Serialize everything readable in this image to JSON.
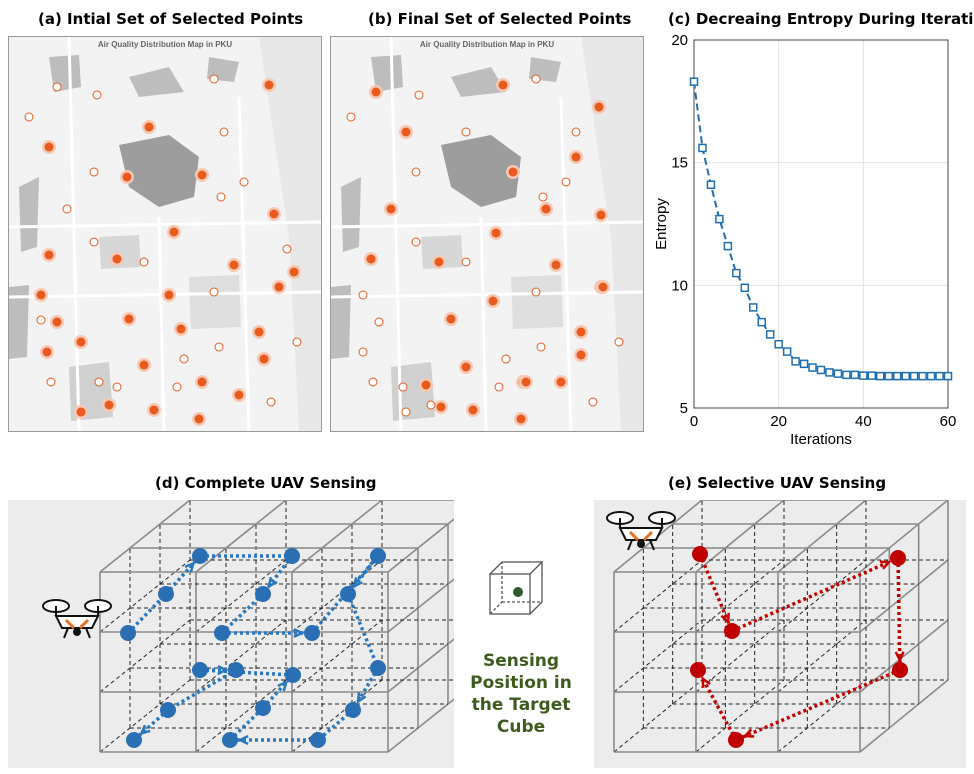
{
  "panels": {
    "a_title": "(a) Intial Set of Selected Points",
    "b_title": "(b) Final Set of Selected Points",
    "c_title": "(c) Decreaing Entropy During Iteration",
    "d_title": "(d) Complete  UAV Sensing",
    "e_title": "(e) Selective  UAV Sensing"
  },
  "map_title": "Air Quality Distribution Map in PKU",
  "caption": {
    "line1": "Sensing",
    "line2": "Position in",
    "line3": "the Target",
    "line4": "Cube"
  },
  "colors": {
    "orange": "#e85a1e",
    "blue_series": "#1f6eb0",
    "blue_node": "#2a6fb4",
    "red_node": "#c00000",
    "caption_green": "#3e5b1e"
  },
  "chart_data": {
    "type": "line",
    "title": "(c) Decreaing Entropy During Iteration",
    "xlabel": "Iterations",
    "ylabel": "Entropy",
    "xlim": [
      0,
      60
    ],
    "ylim": [
      5,
      20
    ],
    "x_ticks": [
      "0",
      "20",
      "40",
      "60"
    ],
    "y_ticks": [
      "5",
      "10",
      "15",
      "20"
    ],
    "grid": true,
    "x": [
      0,
      2,
      4,
      6,
      8,
      10,
      12,
      14,
      16,
      18,
      20,
      22,
      24,
      26,
      28,
      30,
      32,
      34,
      36,
      38,
      40,
      42,
      44,
      46,
      48,
      50,
      52,
      54,
      56,
      58,
      60
    ],
    "values": [
      18.3,
      15.6,
      14.1,
      12.7,
      11.6,
      10.5,
      9.9,
      9.1,
      8.5,
      8.0,
      7.6,
      7.3,
      6.9,
      6.8,
      6.65,
      6.55,
      6.45,
      6.4,
      6.35,
      6.35,
      6.32,
      6.32,
      6.3,
      6.3,
      6.3,
      6.3,
      6.3,
      6.3,
      6.3,
      6.3,
      6.3
    ]
  }
}
